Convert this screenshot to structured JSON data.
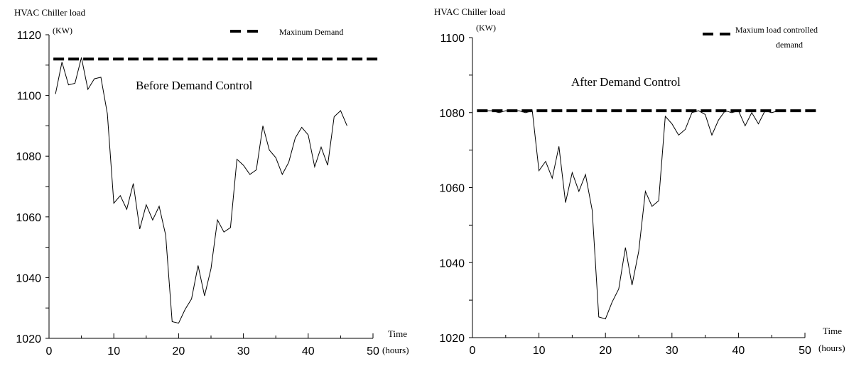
{
  "chart_data": [
    {
      "type": "line",
      "title": "Before Demand Control",
      "ylabel": "HVAC Chiller load",
      "yunit": "(KW)",
      "xlabel": "Time",
      "xunit": "(hours)",
      "xlim": [
        0,
        50
      ],
      "ylim": [
        1020,
        1120
      ],
      "xticks": [
        0,
        10,
        20,
        30,
        40,
        50
      ],
      "yticks": [
        1020,
        1040,
        1060,
        1080,
        1100,
        1120
      ],
      "legend": {
        "label": "Maxinum Demand",
        "placement": "top-right"
      },
      "reference_line": {
        "label": "Maxinum Demand",
        "value": 1112
      },
      "series": [
        {
          "x": [
            1,
            2,
            3,
            4,
            5,
            6,
            7,
            8,
            9,
            10,
            11,
            12,
            13,
            14,
            15,
            16,
            17,
            18,
            19,
            20,
            21,
            22,
            23,
            24,
            25,
            26,
            27,
            28,
            29,
            30,
            31,
            32,
            33,
            34,
            35,
            36,
            37,
            38,
            39,
            40,
            41,
            42,
            43,
            44,
            45,
            46
          ],
          "values": [
            1100.5,
            1111,
            1103.5,
            1104,
            1112.5,
            1102,
            1105.5,
            1106,
            1094,
            1064.5,
            1067,
            1062.5,
            1071,
            1056,
            1064,
            1059,
            1063.5,
            1054,
            1025.5,
            1025,
            1029.5,
            1033,
            1044,
            1034,
            1043,
            1059,
            1055,
            1056.5,
            1079,
            1077,
            1074,
            1075.5,
            1090,
            1082,
            1079.5,
            1074,
            1078,
            1086,
            1089.5,
            1087,
            1076.5,
            1083,
            1077,
            1093,
            1095,
            1090
          ]
        }
      ]
    },
    {
      "type": "line",
      "title": "After Demand Control",
      "ylabel": "HVAC Chiller load",
      "yunit": "(KW)",
      "xlabel": "Time",
      "xunit": "(hours)",
      "xlim": [
        0,
        50
      ],
      "ylim": [
        1020,
        1100
      ],
      "xticks": [
        0,
        10,
        20,
        30,
        40,
        50
      ],
      "yticks": [
        1020,
        1040,
        1060,
        1080,
        1100
      ],
      "legend": {
        "label_line1": "Maxium load controlled",
        "label_line2": "demand",
        "placement": "top-right"
      },
      "reference_line": {
        "label": "Maxium load controlled demand",
        "value": 1080.5
      },
      "series": [
        {
          "x": [
            1,
            2,
            3,
            4,
            5,
            6,
            7,
            8,
            9,
            10,
            11,
            12,
            13,
            14,
            15,
            16,
            17,
            18,
            19,
            20,
            21,
            22,
            23,
            24,
            25,
            26,
            27,
            28,
            29,
            30,
            31,
            32,
            33,
            34,
            35,
            36,
            37,
            38,
            39,
            40,
            41,
            42,
            43,
            44,
            45,
            46
          ],
          "values": [
            1080.5,
            1080.5,
            1080.5,
            1080,
            1080.5,
            1080.5,
            1080.5,
            1080,
            1080.5,
            1064.5,
            1067,
            1062.5,
            1071,
            1056,
            1064,
            1059,
            1063.5,
            1054,
            1025.5,
            1025,
            1029.5,
            1033,
            1044,
            1034,
            1043,
            1059,
            1055,
            1056.5,
            1079,
            1077,
            1074,
            1075.5,
            1080,
            1080.5,
            1079.5,
            1074,
            1078,
            1080.5,
            1080,
            1080.5,
            1076.5,
            1080,
            1077,
            1080.5,
            1080,
            1080.5
          ]
        }
      ]
    }
  ]
}
